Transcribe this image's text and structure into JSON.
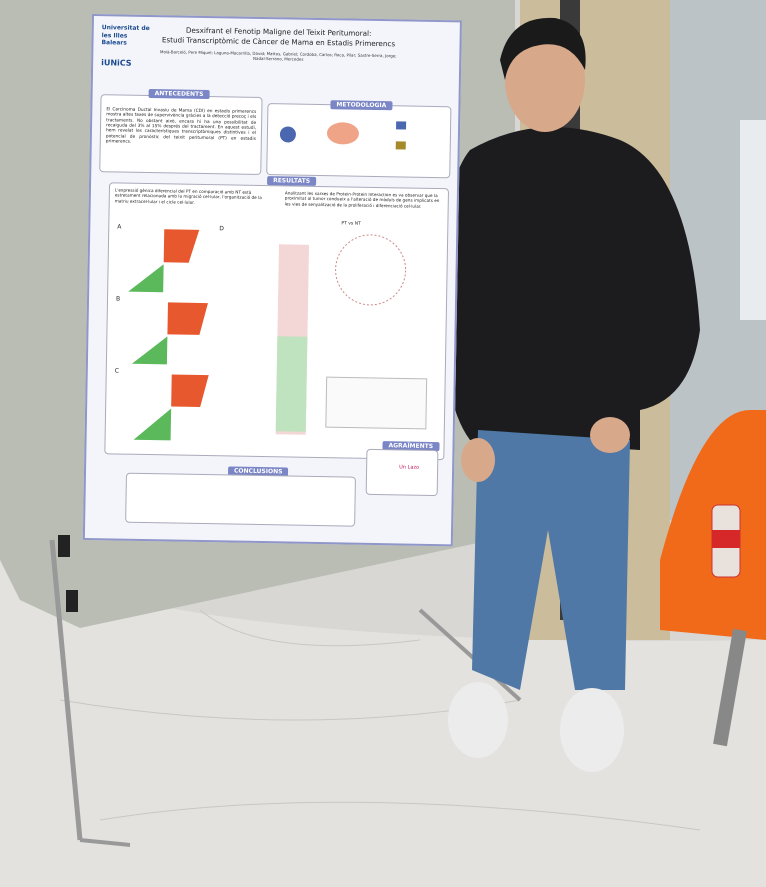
{
  "poster": {
    "logos": [
      "Universitat de les Illes Balears",
      "iUNiCS"
    ],
    "title": [
      "Desxifrant el Fenotip Maligne del Teixit Peritumoral:",
      "Estudi Transcriptòmic de Càncer de Mama en Estadis Primerencs"
    ],
    "authors": "Moià-Barceló, Pere Miquel; Laguna-Macarrilla, David; Mattos, Gabriel; Cordoba, Carlos; Roca, Pilar; Sastre-Serra, Jorge; Nadal-Serrano, Mercedes",
    "antecedents": {
      "heading": "ANTECEDENTS",
      "text": "El Carcinoma Ductal Invasiu de Mama (CDI) en estadis primerencs mostra altes taxes de supervivència gràcies a la detecció precoç i els tractaments. No obstant això, encara hi ha una possibilitat de recaiguda del 3% al 15% després del tractament. En aquest estudi, hem revelat les característiques transcriptòmiques distintives i el potencial de pronòstic del teixit peritumoral (PT) en estadis primerencs."
    },
    "metodologia": {
      "heading": "METODOLOGIA"
    },
    "resultats": {
      "heading": "RESULTATS",
      "text_left": "L'expressió gènica diferencial del PT en comparació amb NT està estretament relacionada amb la migració cel·lular, l'organització de la matriu extracel·lular i el cicle cel·lular.",
      "text_right": "Analitzant les xarxes de Protein-Protein Interaction es va observar que la proximitat al tumor condueix a l'alteració de mòduls de gens implicats en les vies de senyalització de la proliferació i diferenciació cel·lular.",
      "figure_labels": [
        "A",
        "B",
        "C",
        "D"
      ],
      "network_label": "PT vs NT"
    },
    "conclusions": {
      "heading": "CONCLUSIONS"
    },
    "agraiments": {
      "heading": "AGRAÏMENTS",
      "sponsor": "Un Lazo"
    }
  }
}
